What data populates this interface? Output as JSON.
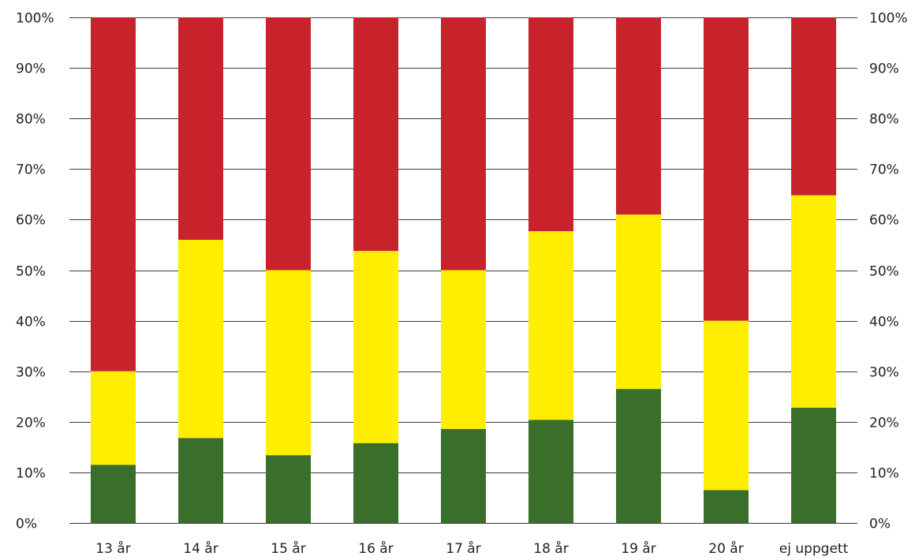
{
  "chart_data": {
    "type": "bar",
    "stacked": true,
    "normalized": true,
    "categories": [
      "13 år",
      "14 år",
      "15 år",
      "16 år",
      "17 år",
      "18 år",
      "19 år",
      "20 år",
      "ej uppgett"
    ],
    "series": [
      {
        "color": "#3a6e2b",
        "values": [
          11.5,
          16.8,
          13.4,
          15.8,
          18.6,
          20.4,
          26.5,
          6.5,
          22.8
        ]
      },
      {
        "color": "#ffee00",
        "values": [
          18.5,
          39.2,
          36.6,
          38.0,
          31.4,
          37.3,
          34.5,
          33.5,
          42.0
        ]
      },
      {
        "color": "#c8222a",
        "values": [
          70.0,
          44.0,
          50.0,
          46.2,
          50.0,
          42.3,
          39.0,
          60.0,
          35.2
        ]
      }
    ],
    "ylim": [
      0,
      100
    ],
    "y_ticks": [
      "0%",
      "10%",
      "20%",
      "30%",
      "40%",
      "50%",
      "60%",
      "70%",
      "80%",
      "90%",
      "100%"
    ],
    "y_axis_sides": "left-and-right",
    "grid": true,
    "legend": "none"
  }
}
